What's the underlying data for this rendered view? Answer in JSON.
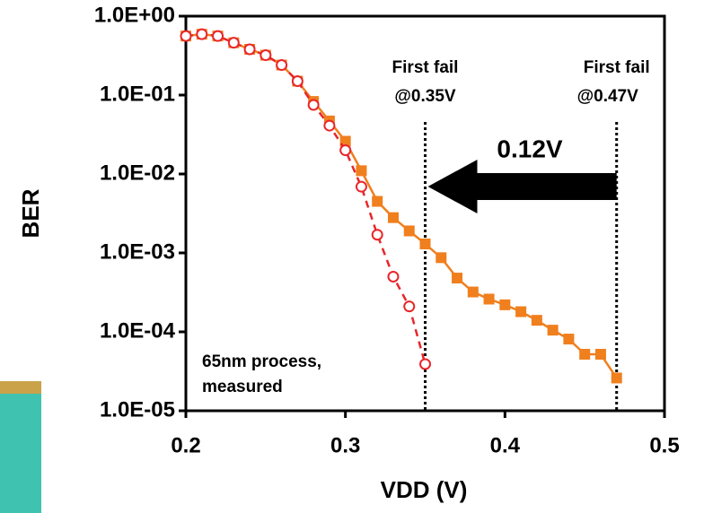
{
  "chart_data": {
    "type": "line",
    "log_y": true,
    "x_label": "VDD (V)",
    "y_label": "BER",
    "x": [
      0.2,
      0.21,
      0.22,
      0.23,
      0.24,
      0.25,
      0.26,
      0.27,
      0.28,
      0.29,
      0.3,
      0.31,
      0.32,
      0.33,
      0.34,
      0.35,
      0.36,
      0.37,
      0.38,
      0.39,
      0.4,
      0.41,
      0.42,
      0.43,
      0.44,
      0.45,
      0.46,
      0.47
    ],
    "series": [
      {
        "color": "#f07f1e",
        "marker": "square",
        "dashed": false,
        "values": [
          0.56,
          0.59,
          0.56,
          0.46,
          0.38,
          0.32,
          0.24,
          0.15,
          0.083,
          0.047,
          0.026,
          0.011,
          0.0045,
          0.0028,
          0.0019,
          0.0013,
          0.00087,
          0.00048,
          0.00032,
          0.00026,
          0.00022,
          0.00018,
          0.00014,
          0.000105,
          8.1e-05,
          5.2e-05,
          5.2e-05,
          2.6e-05
        ]
      },
      {
        "color": "#e8262a",
        "marker": "circle",
        "dashed": true,
        "values": [
          0.56,
          0.59,
          0.56,
          0.46,
          0.38,
          0.32,
          0.24,
          0.15,
          0.075,
          0.041,
          0.02,
          0.0069,
          0.0017,
          0.0005,
          0.00021,
          3.9e-05,
          null,
          null,
          null,
          null,
          null,
          null,
          null,
          null,
          null,
          null,
          null,
          null
        ]
      }
    ],
    "xlim": [
      0.2,
      0.5
    ],
    "xticks": [
      0.2,
      0.3,
      0.4,
      0.5
    ],
    "ylim": [
      1e-05,
      1
    ],
    "yticks": [
      {
        "value": 1,
        "label": "1.0E+00"
      },
      {
        "value": 0.1,
        "label": "1.0E-01"
      },
      {
        "value": 0.01,
        "label": "1.0E-02"
      },
      {
        "value": 0.001,
        "label": "1.0E-03"
      },
      {
        "value": 0.0001,
        "label": "1.0E-04"
      },
      {
        "value": 1e-05,
        "label": "1.0E-05"
      }
    ],
    "vlines": [
      0.35,
      0.47
    ],
    "annotations": [
      "First fail",
      "@0.35V",
      "First fail",
      "@0.47V",
      "0.12V",
      "65nm process,",
      "measured"
    ]
  }
}
